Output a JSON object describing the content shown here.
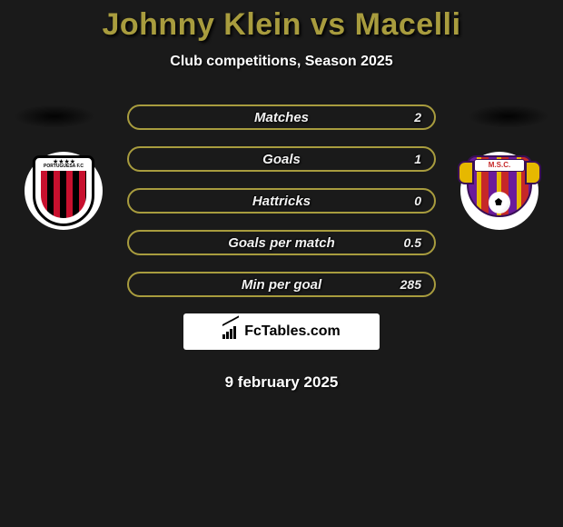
{
  "title": "Johnny Klein vs Macelli",
  "subtitle": "Club competitions, Season 2025",
  "date": "9 february 2025",
  "brand": "FcTables.com",
  "colors": {
    "accent": "#a89c3e",
    "background": "#1a1a1a",
    "text": "#ffffff"
  },
  "team_a_badge": {
    "label": "PORTUGUESA F.C"
  },
  "team_b_badge": {
    "label": "M.S.C."
  },
  "stats": [
    {
      "label": "Matches",
      "value_a": "",
      "value_b": "2"
    },
    {
      "label": "Goals",
      "value_a": "",
      "value_b": "1"
    },
    {
      "label": "Hattricks",
      "value_a": "",
      "value_b": "0"
    },
    {
      "label": "Goals per match",
      "value_a": "",
      "value_b": "0.5"
    },
    {
      "label": "Min per goal",
      "value_a": "",
      "value_b": "285"
    }
  ]
}
